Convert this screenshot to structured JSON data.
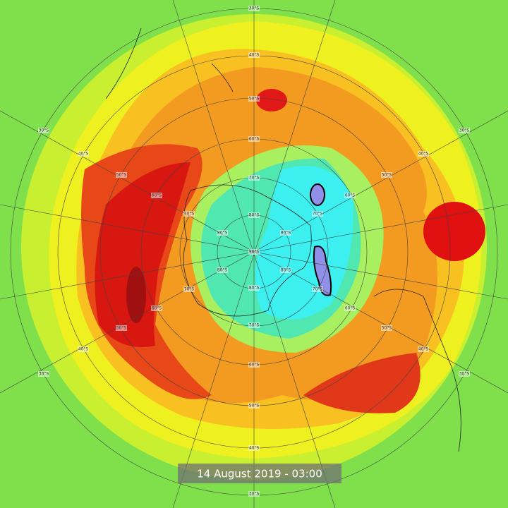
{
  "timestamp": "14 August 2019 - 03:00",
  "latitude_labels": [
    "30°S",
    "40°S",
    "50°S",
    "60°S",
    "70°S",
    "80°S",
    "90°S",
    "80°S",
    "70°S",
    "60°S",
    "50°S",
    "40°S",
    "30°S",
    "30°S",
    "40°S",
    "50°S",
    "60°S",
    "70°S",
    "80°S",
    "30°S",
    "40°S",
    "50°S",
    "60°S",
    "70°S",
    "80°S",
    "80°S",
    "70°S",
    "60°S",
    "50°S",
    "40°S",
    "30°S",
    "80°S",
    "70°S",
    "60°S",
    "50°S",
    "40°S",
    "30°S"
  ]
}
